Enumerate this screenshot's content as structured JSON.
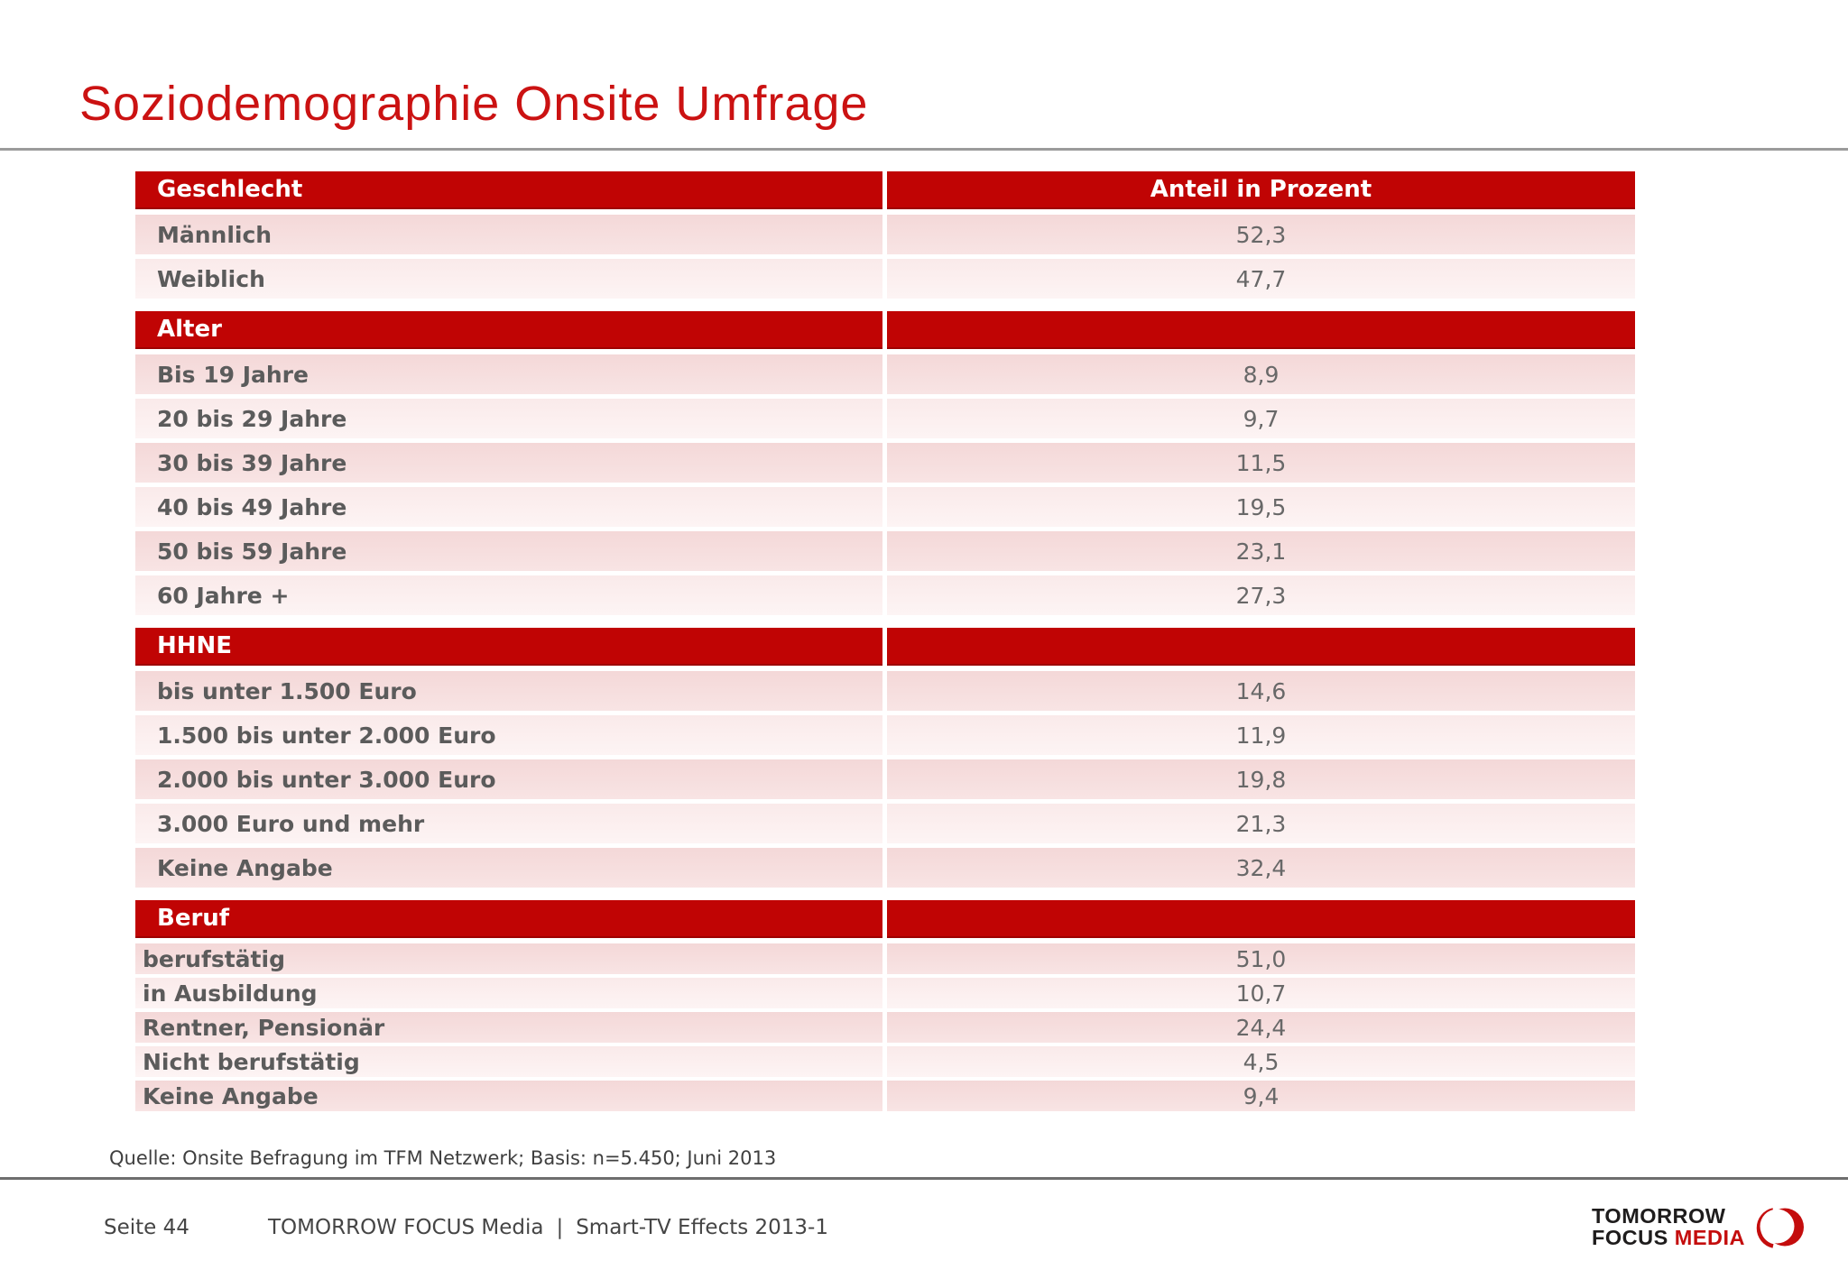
{
  "title": "Soziodemographie Onsite Umfrage",
  "table": {
    "value_header": "Anteil in Prozent",
    "sections": [
      {
        "header": "Geschlecht",
        "rows": [
          {
            "label": "Männlich",
            "value": "52,3"
          },
          {
            "label": "Weiblich",
            "value": "47,7"
          }
        ]
      },
      {
        "header": "Alter",
        "rows": [
          {
            "label": "Bis 19 Jahre",
            "value": "8,9"
          },
          {
            "label": "20 bis 29 Jahre",
            "value": "9,7"
          },
          {
            "label": "30 bis 39 Jahre",
            "value": "11,5"
          },
          {
            "label": "40 bis 49 Jahre",
            "value": "19,5"
          },
          {
            "label": "50 bis 59 Jahre",
            "value": "23,1"
          },
          {
            "label": "60 Jahre +",
            "value": "27,3"
          }
        ]
      },
      {
        "header": "HHNE",
        "rows": [
          {
            "label": "bis unter 1.500 Euro",
            "value": "14,6"
          },
          {
            "label": "1.500 bis unter 2.000 Euro",
            "value": "11,9"
          },
          {
            "label": "2.000 bis unter 3.000 Euro",
            "value": "19,8"
          },
          {
            "label": "3.000 Euro und mehr",
            "value": "21,3"
          },
          {
            "label": "Keine Angabe",
            "value": "32,4"
          }
        ]
      },
      {
        "header": "Beruf",
        "compact": true,
        "rows": [
          {
            "label": "berufstätig",
            "value": "51,0"
          },
          {
            "label": "in Ausbildung",
            "value": "10,7"
          },
          {
            "label": "Rentner, Pensionär",
            "value": "24,4"
          },
          {
            "label": "Nicht berufstätig",
            "value": "4,5"
          },
          {
            "label": "Keine Angabe",
            "value": "9,4"
          }
        ]
      }
    ]
  },
  "source": "Quelle: Onsite Befragung im TFM Netzwerk; Basis: n=5.450; Juni 2013",
  "footer": {
    "page": "Seite 44",
    "brand": "TOMORROW FOCUS Media",
    "separator": "|",
    "doc": "Smart-TV Effects 2013-1"
  },
  "logo": {
    "line1": "TOMORROW",
    "line2_dark": "FOCUS",
    "line2_red": "MEDIA",
    "mark": "crescent-circle-icon"
  },
  "colors": {
    "header_red": "#C00404",
    "title_red": "#CB1212",
    "row_dark": "#F5DADA",
    "row_light": "#FBEDED",
    "label_gray": "#5B5B5B",
    "value_gray": "#686868",
    "logo_red": "#C40D0D",
    "logo_dark": "#1E1C1C"
  },
  "chart_data": {
    "type": "table",
    "title": "Soziodemographie Onsite Umfrage",
    "value_column": "Anteil in Prozent",
    "groups": [
      {
        "name": "Geschlecht",
        "categories": [
          "Männlich",
          "Weiblich"
        ],
        "values": [
          52.3,
          47.7
        ]
      },
      {
        "name": "Alter",
        "categories": [
          "Bis 19 Jahre",
          "20 bis 29 Jahre",
          "30 bis 39 Jahre",
          "40 bis 49 Jahre",
          "50 bis 59 Jahre",
          "60 Jahre +"
        ],
        "values": [
          8.9,
          9.7,
          11.5,
          19.5,
          23.1,
          27.3
        ]
      },
      {
        "name": "HHNE",
        "categories": [
          "bis unter 1.500 Euro",
          "1.500 bis unter 2.000 Euro",
          "2.000 bis unter 3.000 Euro",
          "3.000 Euro und mehr",
          "Keine Angabe"
        ],
        "values": [
          14.6,
          11.9,
          19.8,
          21.3,
          32.4
        ]
      },
      {
        "name": "Beruf",
        "categories": [
          "berufstätig",
          "in Ausbildung",
          "Rentner, Pensionär",
          "Nicht berufstätig",
          "Keine Angabe"
        ],
        "values": [
          51.0,
          10.7,
          24.4,
          4.5,
          9.4
        ]
      }
    ]
  }
}
